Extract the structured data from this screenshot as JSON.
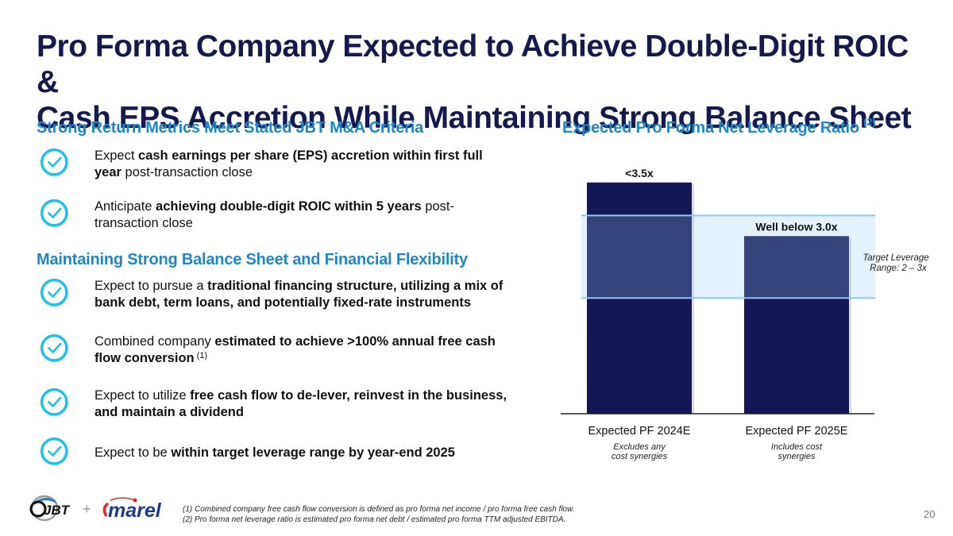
{
  "title": {
    "line1": "Pro Forma Company Expected to Achieve Double-Digit ROIC &",
    "line2": "Cash EPS Accretion While Maintaining Strong Balance Sheet"
  },
  "left": {
    "section1": {
      "heading": "Strong Return Metrics Meet Stated JBT M&A Criteria",
      "items": [
        {
          "parts": [
            {
              "t": "Expect ",
              "b": false
            },
            {
              "t": "cash earnings per share (EPS) accretion within first full year",
              "b": true
            },
            {
              "t": " post-transaction close",
              "b": false
            }
          ]
        },
        {
          "parts": [
            {
              "t": "Anticipate ",
              "b": false
            },
            {
              "t": "achieving double-digit ROIC within 5 years",
              "b": true
            },
            {
              "t": " post-transaction close",
              "b": false
            }
          ]
        }
      ]
    },
    "section2": {
      "heading": "Maintaining Strong Balance Sheet and Financial Flexibility",
      "items": [
        {
          "parts": [
            {
              "t": "Expect to pursue a ",
              "b": false
            },
            {
              "t": "traditional financing structure, utilizing a mix of bank debt, term loans, and potentially fixed-rate instruments",
              "b": true
            }
          ]
        },
        {
          "parts": [
            {
              "t": "Combined company ",
              "b": false
            },
            {
              "t": "estimated to achieve >100% annual free cash flow conversion",
              "b": true
            },
            {
              "t": " (1)",
              "b": false,
              "sup": true
            }
          ]
        },
        {
          "parts": [
            {
              "t": "Expect to utilize ",
              "b": false
            },
            {
              "t": "free cash flow to de-lever, reinvest in the business, and maintain a dividend",
              "b": true
            }
          ]
        },
        {
          "parts": [
            {
              "t": "Expect to be ",
              "b": false
            },
            {
              "t": "within target leverage range by year-end 2025",
              "b": true
            }
          ]
        }
      ]
    },
    "check_icon": "check-circle-icon"
  },
  "right": {
    "heading": "Expected Pro Forma Net Leverage Ratio",
    "heading_sup": "(2)"
  },
  "chart_data": {
    "type": "bar",
    "title": "Expected Pro Forma Net Leverage Ratio (2)",
    "categories": [
      "Expected PF 2024E",
      "Expected PF 2025E"
    ],
    "category_notes": [
      "Excludes any cost synergies",
      "Includes cost synergies"
    ],
    "values": [
      3.4,
      2.75
    ],
    "data_labels": [
      "<3.5x",
      "Well below 3.0x"
    ],
    "target_range": {
      "low": 2.0,
      "high": 3.0,
      "label_line1": "Target Leverage",
      "label_line2": "Range: 2 – 3x"
    },
    "ylim": [
      0.6,
      3.6
    ],
    "xlabel": "",
    "ylabel": "",
    "grid": false,
    "colors": {
      "bar": "#141655",
      "bar_in_range": "#33437c",
      "band": "#e3f2fc",
      "band_line": "#8cc8ee",
      "axis": "#222222"
    }
  },
  "footer": {
    "note1": "(1) Combined company free cash flow conversion is defined as pro forma net income / pro forma free cash flow.",
    "note2": "(2) Pro forma net leverage ratio is estimated pro forma net debt / estimated pro forma TTM adjusted EBITDA.",
    "page_number": "20",
    "logo_left": "JBT",
    "logo_plus": "+",
    "logo_right": "marel"
  },
  "colors": {
    "title": "#141a4f",
    "section_heading": "#1f86c8",
    "check": "#1fc0ec"
  }
}
